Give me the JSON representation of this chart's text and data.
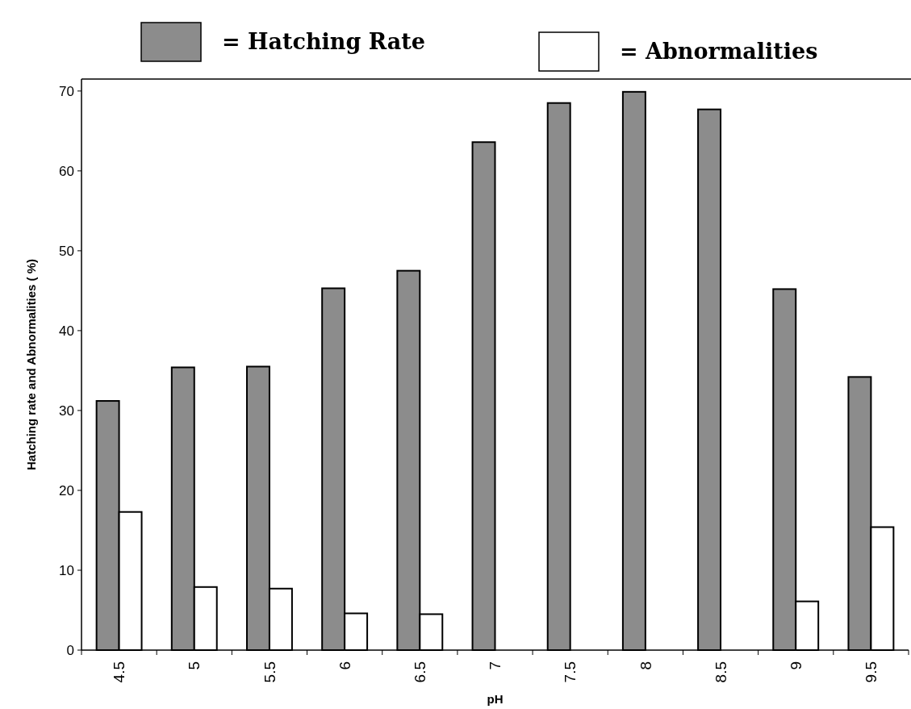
{
  "chart_data": {
    "type": "bar",
    "xlabel": "pH",
    "ylabel": "Hatching rate and Abnormalities ( %)",
    "categories": [
      "4.5",
      "5",
      "5.5",
      "6",
      "6.5",
      "7",
      "7.5",
      "8",
      "8.5",
      "9",
      "9.5"
    ],
    "series": [
      {
        "name": "= Hatching Rate",
        "color": "#8c8c8c",
        "values": [
          31.2,
          35.4,
          35.5,
          45.3,
          47.5,
          63.6,
          68.5,
          69.9,
          67.7,
          45.2,
          34.2
        ]
      },
      {
        "name": "= Abnormalities",
        "color": "#ffffff",
        "values": [
          17.3,
          7.9,
          7.7,
          4.6,
          4.5,
          null,
          null,
          null,
          null,
          6.1,
          15.4
        ]
      }
    ],
    "ylim": [
      0,
      71.5
    ],
    "yticks": [
      0,
      10,
      20,
      30,
      40,
      50,
      60,
      70
    ],
    "grid": false,
    "legend": "top"
  }
}
